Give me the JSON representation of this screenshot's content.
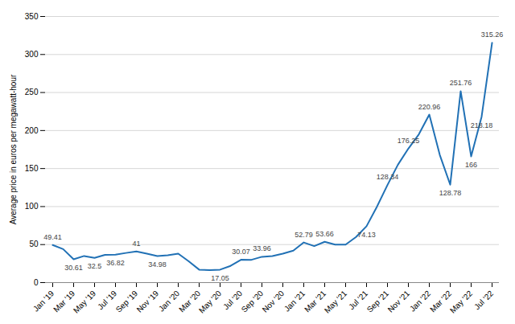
{
  "chart_data": {
    "type": "line",
    "ylabel": "Average price in euros per megawatt-hour",
    "categories": [
      "Jan '19",
      null,
      "Mar '19",
      null,
      "May '19",
      null,
      "Jul '19",
      null,
      "Sep '19",
      null,
      "Nov '19",
      null,
      "Jan '20",
      null,
      "Mar '20",
      null,
      "May '20",
      null,
      "Jul '20",
      null,
      "Sep '20",
      null,
      "Nov '20",
      null,
      "Jan '21",
      null,
      "Mar '21",
      null,
      "May '21",
      null,
      "Jul '21",
      null,
      "Sep '21",
      null,
      "Nov '21",
      null,
      "Jan '22",
      null,
      "Mar '22",
      null,
      "May '22",
      null,
      "Jul '22"
    ],
    "values": [
      49.41,
      44.0,
      30.61,
      35.0,
      32.5,
      36.5,
      36.82,
      39.0,
      41.0,
      38.0,
      34.98,
      36.0,
      38.0,
      28.0,
      17.05,
      16.5,
      17.05,
      22.0,
      30.07,
      30.0,
      33.96,
      35.0,
      38.0,
      42.0,
      52.79,
      48.0,
      53.66,
      50.0,
      50.0,
      60.0,
      74.13,
      100.0,
      128.34,
      155.0,
      176.25,
      195.0,
      220.96,
      168.0,
      128.78,
      251.76,
      166.0,
      218.18,
      315.26
    ],
    "value_labels": [
      "49.41",
      null,
      "30.61",
      null,
      "32.5",
      null,
      "36.82",
      null,
      "41",
      null,
      "34.98",
      null,
      null,
      null,
      null,
      null,
      "17.05",
      null,
      "30.07",
      null,
      "33.96",
      null,
      null,
      null,
      "52.79",
      null,
      "53.66",
      null,
      null,
      null,
      "74.13",
      null,
      "128.34",
      null,
      "176.25",
      null,
      "220.96",
      null,
      "128.78",
      "251.76",
      "166",
      "218.18",
      "315.26"
    ],
    "data_labels": true,
    "color": "#2171b5",
    "ylim": [
      0,
      350
    ],
    "yticks": [
      0,
      50,
      100,
      150,
      200,
      250,
      300,
      350
    ],
    "grid": true
  }
}
